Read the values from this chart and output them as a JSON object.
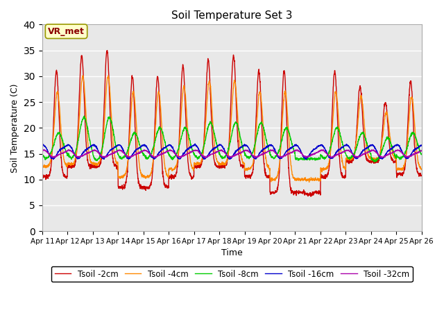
{
  "title": "Soil Temperature Set 3",
  "xlabel": "Time",
  "ylabel": "Soil Temperature (C)",
  "ylim": [
    0,
    40
  ],
  "yticks": [
    0,
    5,
    10,
    15,
    20,
    25,
    30,
    35,
    40
  ],
  "annotation": "VR_met",
  "bg_color": "#e8e8e8",
  "legend": [
    {
      "label": "Tsoil -2cm",
      "color": "#cc0000"
    },
    {
      "label": "Tsoil -4cm",
      "color": "#ff8800"
    },
    {
      "label": "Tsoil -8cm",
      "color": "#00cc00"
    },
    {
      "label": "Tsoil -16cm",
      "color": "#0000cc"
    },
    {
      "label": "Tsoil -32cm",
      "color": "#aa00aa"
    }
  ],
  "xtick_labels": [
    "Apr 11",
    "Apr 12",
    "Apr 13",
    "Apr 14",
    "Apr 15",
    "Apr 16",
    "Apr 17",
    "Apr 18",
    "Apr 19",
    "Apr 20",
    "Apr 21",
    "Apr 22",
    "Apr 23",
    "Apr 24",
    "Apr 25",
    "Apr 26"
  ],
  "line_width": 1.0,
  "day_peaks2": [
    31,
    34,
    35,
    30,
    30,
    32,
    33,
    34,
    31,
    31,
    7,
    31,
    28,
    25,
    29
  ],
  "day_troughs2": [
    10.5,
    12.5,
    12.5,
    8.5,
    8.5,
    10.5,
    12.5,
    12.5,
    10.5,
    7.5,
    7.5,
    10.5,
    13.5,
    13.5,
    11
  ],
  "day_peaks4": [
    27,
    30,
    30,
    27,
    27,
    28,
    29,
    29,
    27,
    27,
    10,
    27,
    26,
    23,
    26
  ],
  "day_troughs4": [
    12.5,
    13,
    13,
    10.5,
    10.5,
    12,
    13,
    13,
    12,
    10,
    10,
    12,
    14,
    14,
    12
  ],
  "day_peaks8": [
    19,
    22,
    22,
    19,
    20,
    20,
    21,
    21,
    21,
    20,
    14,
    20,
    19,
    18,
    19
  ],
  "day_troughs8": [
    14,
    14,
    13.5,
    14,
    14,
    14,
    14,
    14,
    14,
    14,
    14,
    14,
    14,
    13.5,
    14
  ]
}
